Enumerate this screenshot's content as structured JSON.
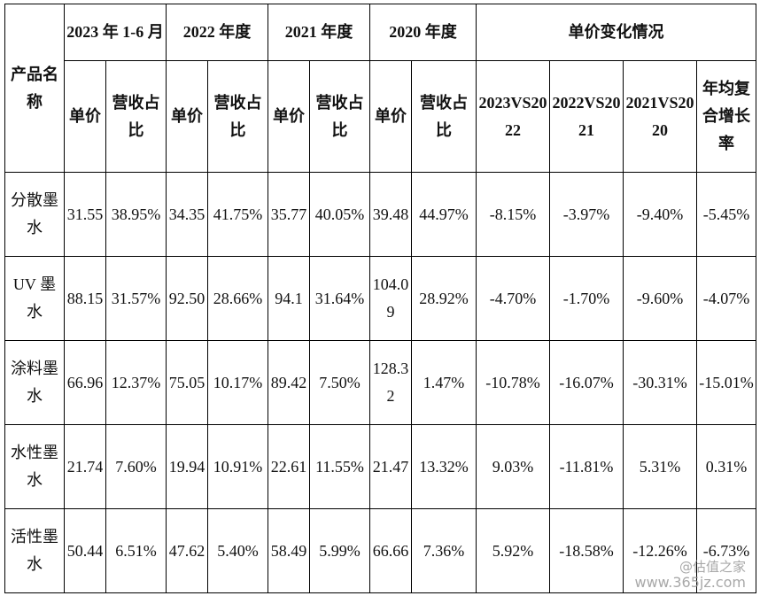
{
  "header": {
    "product_name": "产品名称",
    "periods": [
      "2023 年 1-6 月",
      "2022 年度",
      "2021 年度",
      "2020 年度"
    ],
    "change_group": "单价变化情况",
    "unit_price": "单价",
    "revenue_share": "营收占比",
    "change_cols": [
      "2023VS2022",
      "2022VS2021",
      "2021VS2020",
      "年均复合增长率"
    ]
  },
  "rows": [
    {
      "name": "分散墨水",
      "cells": [
        "31.55",
        "38.95%",
        "34.35",
        "41.75%",
        "35.77",
        "40.05%",
        "39.48",
        "44.97%",
        "-8.15%",
        "-3.97%",
        "-9.40%",
        "-5.45%"
      ]
    },
    {
      "name": "UV 墨水",
      "cells": [
        "88.15",
        "31.57%",
        "92.50",
        "28.66%",
        "94.1",
        "31.64%",
        "104.09",
        "28.92%",
        "-4.70%",
        "-1.70%",
        "-9.60%",
        "-4.07%"
      ]
    },
    {
      "name": "涂料墨水",
      "cells": [
        "66.96",
        "12.37%",
        "75.05",
        "10.17%",
        "89.42",
        "7.50%",
        "128.32",
        "1.47%",
        "-10.78%",
        "-16.07%",
        "-30.31%",
        "-15.01%"
      ]
    },
    {
      "name": "水性墨水",
      "cells": [
        "21.74",
        "7.60%",
        "19.94",
        "10.91%",
        "22.61",
        "11.55%",
        "21.47",
        "13.32%",
        "9.03%",
        "-11.81%",
        "5.31%",
        "0.31%"
      ]
    },
    {
      "name": "活性墨水",
      "cells": [
        "50.44",
        "6.51%",
        "47.62",
        "5.40%",
        "58.49",
        "5.99%",
        "66.66",
        "7.36%",
        "5.92%",
        "-18.58%",
        "-12.26%",
        "-6.73%"
      ]
    }
  ],
  "watermark": {
    "logo": "@估值之家",
    "url": "www.365jz.com"
  }
}
